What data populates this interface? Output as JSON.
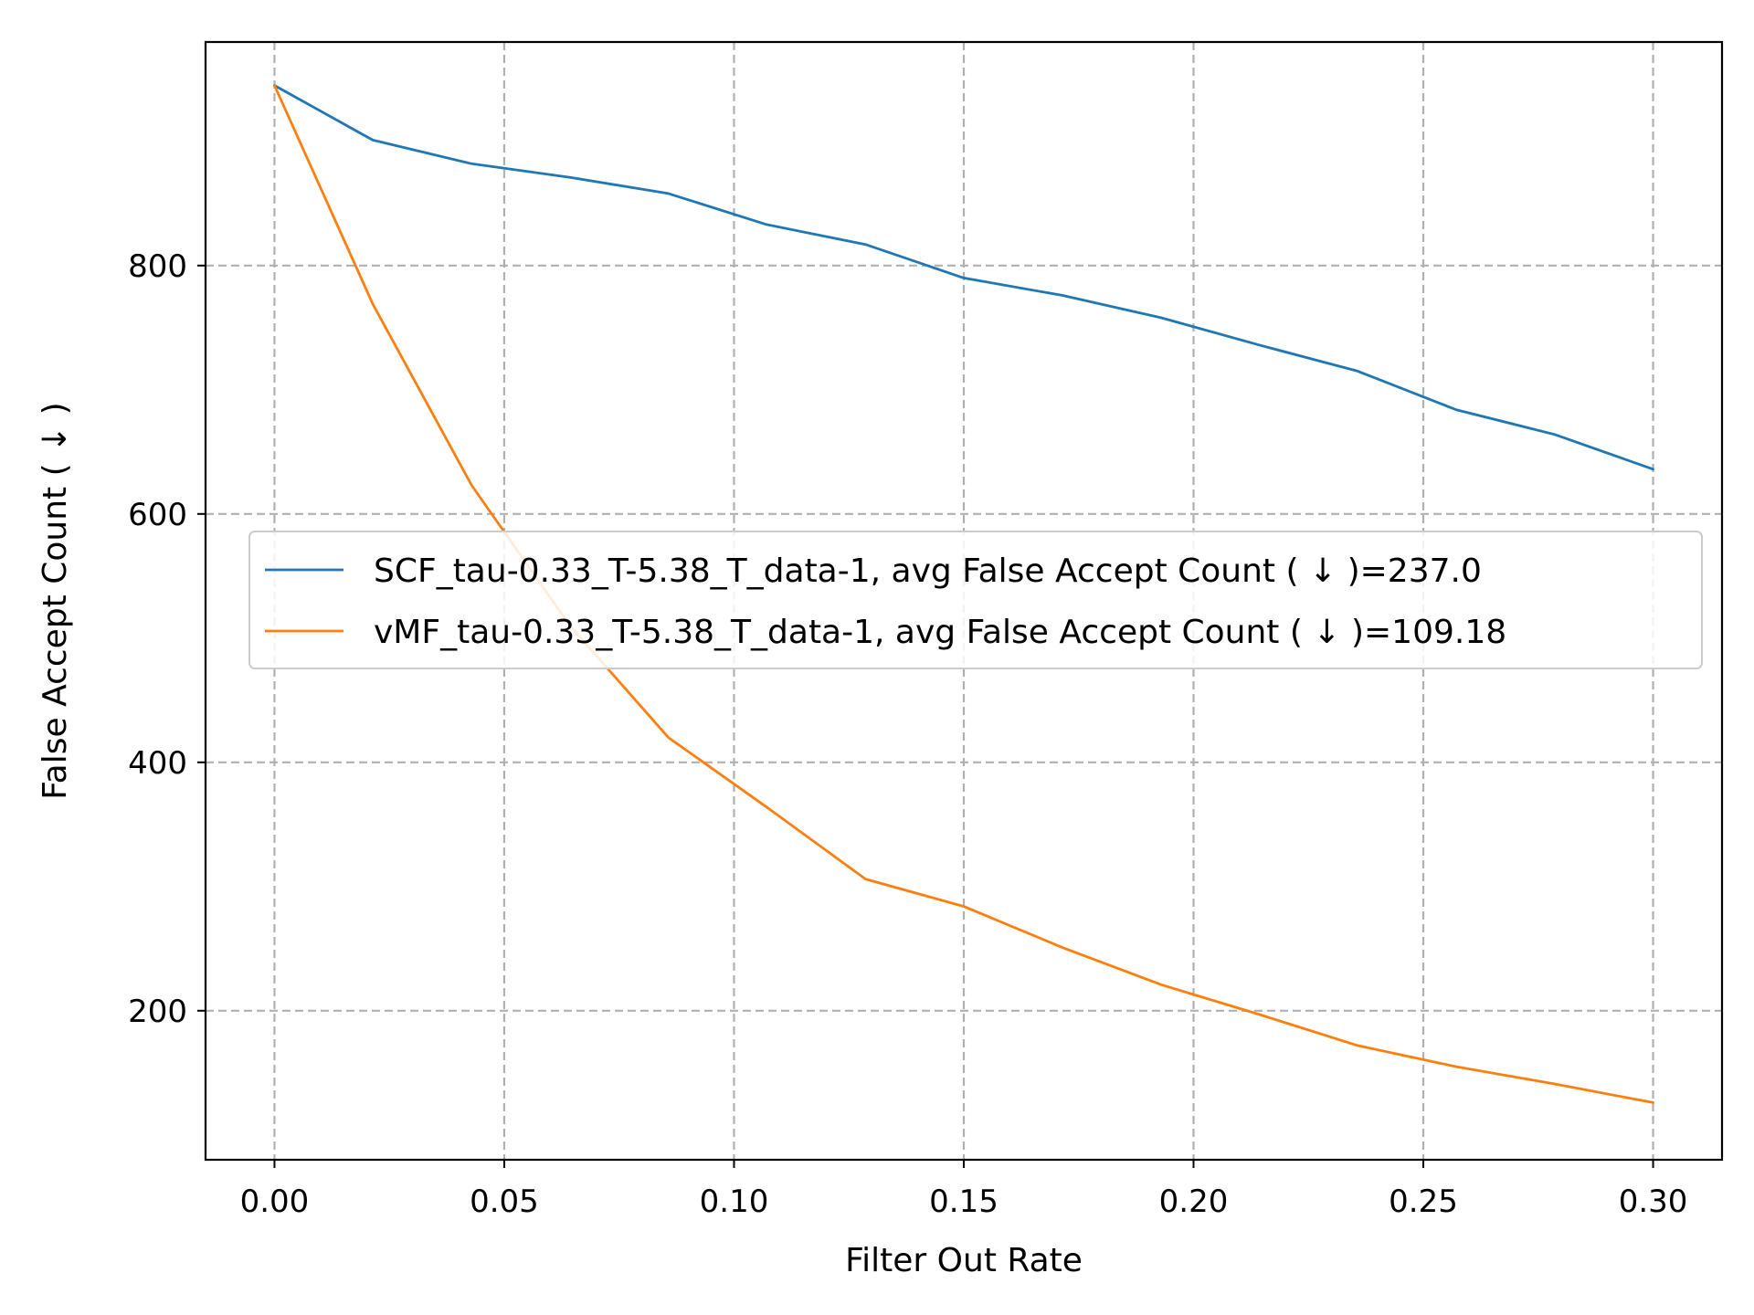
{
  "chart_data": {
    "type": "line",
    "xlabel": "Filter Out Rate",
    "ylabel": "False Accept Count ( ↓ )",
    "xlim": [
      -0.015,
      0.315
    ],
    "ylim": [
      80,
      980
    ],
    "xticks": [
      0.0,
      0.05,
      0.1,
      0.15,
      0.2,
      0.25,
      0.3
    ],
    "xtick_labels": [
      "0.00",
      "0.05",
      "0.10",
      "0.15",
      "0.20",
      "0.25",
      "0.30"
    ],
    "yticks": [
      200,
      400,
      600,
      800
    ],
    "ytick_labels": [
      "200",
      "400",
      "600",
      "800"
    ],
    "grid": true,
    "legend_position": "center-right",
    "x": [
      0.0,
      0.0214,
      0.0429,
      0.0643,
      0.0857,
      0.1071,
      0.1286,
      0.15,
      0.1714,
      0.1929,
      0.2143,
      0.2357,
      0.2571,
      0.2786,
      0.3
    ],
    "series": [
      {
        "name": "SCF_tau-0.33_T-5.38_T_data-1, avg False Accept Count ( ↓ )=237.0",
        "color": "#1f77b4",
        "values": [
          945,
          901,
          882,
          871,
          858,
          833,
          817,
          790,
          776,
          758,
          736,
          715,
          684,
          664,
          636
        ]
      },
      {
        "name": "vMF_tau-0.33_T-5.38_T_data-1, avg False Accept Count ( ↓ )=109.18",
        "color": "#ff7f0e",
        "values": [
          945,
          769,
          623,
          510,
          420,
          364,
          306,
          284,
          251,
          221,
          197,
          172,
          155,
          141,
          126
        ]
      }
    ]
  }
}
